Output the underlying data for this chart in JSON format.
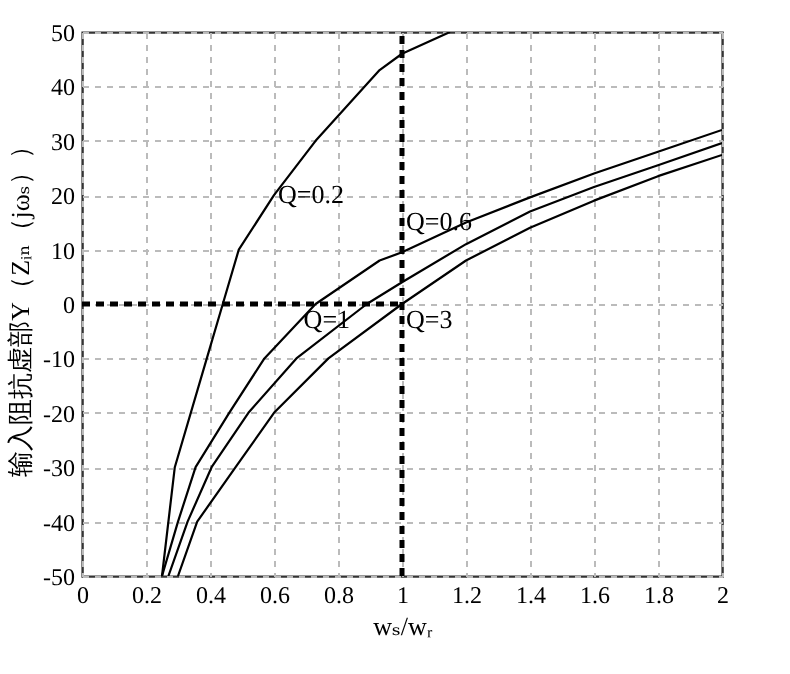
{
  "chart_data": {
    "type": "line",
    "xlabel": "wₛ/wᵣ",
    "ylabel": "输入阻抗虚部Y（Zᵢₙ（jωₛ））",
    "xlim": [
      0,
      2
    ],
    "xticks": [
      0,
      0.2,
      0.4,
      0.6,
      0.8,
      1,
      1.2,
      1.4,
      1.6,
      1.8,
      2
    ],
    "ylim": [
      -50,
      50
    ],
    "yticks": [
      -50,
      -40,
      -30,
      -20,
      -10,
      0,
      10,
      20,
      30,
      40,
      50
    ],
    "grid": true,
    "line_style": "solid",
    "series": [
      {
        "color": "#000000",
        "x": [
          0.25,
          0.29,
          0.39,
          0.44,
          0.49,
          0.6,
          0.73,
          0.93,
          1,
          1.15
        ],
        "values": [
          -50,
          -30,
          -10,
          0,
          10,
          20,
          30,
          43,
          46,
          50
        ]
      },
      {
        "color": "#000000",
        "x": [
          0.25,
          0.3,
          0.355,
          0.46,
          0.57,
          0.73,
          0.93,
          1,
          1.2,
          1.4,
          1.6,
          1.8,
          2
        ],
        "values": [
          -50,
          -40,
          -30,
          -20,
          -10,
          0,
          8,
          9.5,
          15,
          19.6,
          24,
          28,
          32
        ]
      },
      {
        "color": "#000000",
        "x": [
          0.27,
          0.33,
          0.405,
          0.52,
          0.67,
          0.89,
          1,
          1.2,
          1.4,
          1.6,
          1.8,
          2
        ],
        "values": [
          -50,
          -40,
          -30,
          -20,
          -10,
          0,
          4,
          11,
          17,
          21.5,
          25.5,
          29.6
        ]
      },
      {
        "color": "#000000",
        "x": [
          0.3,
          0.36,
          0.48,
          0.6,
          0.77,
          1,
          1.2,
          1.4,
          1.6,
          1.8,
          2
        ],
        "values": [
          -50,
          -40,
          -30,
          -20,
          -10,
          0,
          8,
          14,
          19,
          23.5,
          27.4
        ]
      }
    ],
    "ref_lines": [
      {
        "axis": "x",
        "value": 1,
        "color": "#000000",
        "line_style": "dashed"
      },
      {
        "axis": "y",
        "value": 0,
        "color": "#000000",
        "line_style": "dashed"
      }
    ],
    "annotations": [
      {
        "text": "Q=0.2",
        "x": 0.6,
        "y": 20
      },
      {
        "text": "Q=0.6",
        "x": 1,
        "y": 15
      },
      {
        "text": "Q=1",
        "x": 0.68,
        "y": -3
      },
      {
        "text": "Q=3",
        "x": 1,
        "y": -3
      }
    ]
  }
}
